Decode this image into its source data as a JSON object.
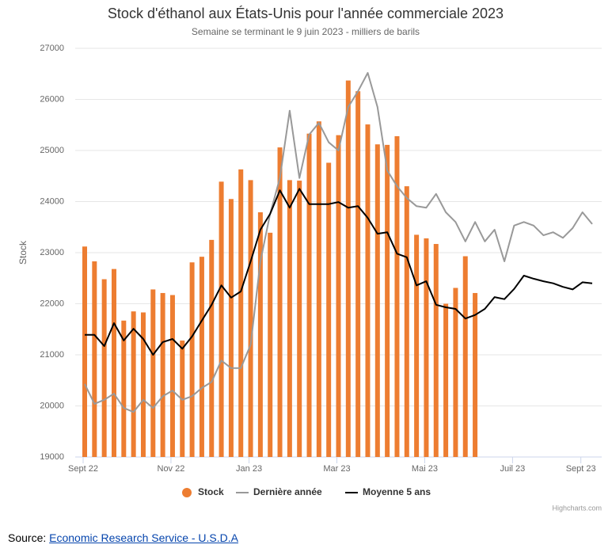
{
  "chart_data": {
    "type": "combo",
    "title": "Stock d'éthanol aux États-Unis pour l'année commerciale 2023",
    "subtitle": "Semaine se terminant le 9 juin 2023 - milliers de barils",
    "y_label": "Stock",
    "categories": [
      "Sept 22",
      null,
      null,
      null,
      null,
      null,
      null,
      null,
      null,
      "Nov 22",
      null,
      null,
      null,
      null,
      null,
      null,
      null,
      "Jan 23",
      null,
      null,
      null,
      null,
      null,
      null,
      null,
      null,
      "Mar 23",
      null,
      null,
      null,
      null,
      null,
      null,
      null,
      null,
      "Mai 23",
      null,
      null,
      null,
      null,
      null,
      null,
      null,
      null,
      "Juil 23",
      null,
      null,
      null,
      null,
      null,
      null,
      "Sept 23",
      null
    ],
    "ylim": [
      19000,
      27000
    ],
    "yticks": [
      19000,
      20000,
      21000,
      22000,
      23000,
      24000,
      25000,
      26000,
      27000
    ],
    "grid": true,
    "series": [
      {
        "name": "Stock",
        "type": "bar",
        "color": "#ed7d31",
        "values": [
          23120,
          22830,
          22480,
          22680,
          21670,
          21850,
          21830,
          22280,
          22210,
          22170,
          21280,
          22810,
          22920,
          23250,
          24390,
          24050,
          24630,
          24420,
          23790,
          23390,
          25060,
          24420,
          24410,
          25330,
          25570,
          24760,
          25300,
          26370,
          26160,
          25510,
          25120,
          25110,
          25280,
          24300,
          23350,
          23280,
          23170,
          22000,
          22310,
          22930,
          22210,
          null,
          null,
          null,
          null,
          null,
          null,
          null,
          null,
          null,
          null,
          null,
          null
        ]
      },
      {
        "name": "Dernière année",
        "type": "line",
        "color": "#999999",
        "values": [
          20430,
          20040,
          20120,
          20240,
          19960,
          19880,
          20120,
          19960,
          20190,
          20300,
          20120,
          20190,
          20350,
          20470,
          20890,
          20740,
          20740,
          21200,
          22830,
          23760,
          24460,
          25780,
          24460,
          25310,
          25540,
          25160,
          25000,
          25850,
          26160,
          26520,
          25850,
          24610,
          24300,
          24070,
          23910,
          23880,
          24150,
          23790,
          23600,
          23220,
          23600,
          23220,
          23450,
          22830,
          23530,
          23600,
          23530,
          23340,
          23400,
          23290,
          23480,
          23790,
          23560
        ]
      },
      {
        "name": "Moyenne 5 ans",
        "type": "line",
        "color": "#000000",
        "values": [
          21390,
          21390,
          21170,
          21620,
          21280,
          21510,
          21310,
          21000,
          21250,
          21310,
          21120,
          21360,
          21670,
          21980,
          22360,
          22120,
          22240,
          22830,
          23450,
          23760,
          24220,
          23880,
          24250,
          23950,
          23950,
          23950,
          23990,
          23880,
          23910,
          23680,
          23370,
          23400,
          22980,
          22910,
          22360,
          22440,
          21980,
          21930,
          21900,
          21710,
          21780,
          21900,
          22130,
          22090,
          22290,
          22550,
          22490,
          22440,
          22400,
          22330,
          22280,
          22420,
          22400
        ]
      }
    ]
  },
  "credits": "Highcharts.com",
  "source": {
    "label": "Source:",
    "link": "Economic Research Service - U.S.D.A"
  }
}
